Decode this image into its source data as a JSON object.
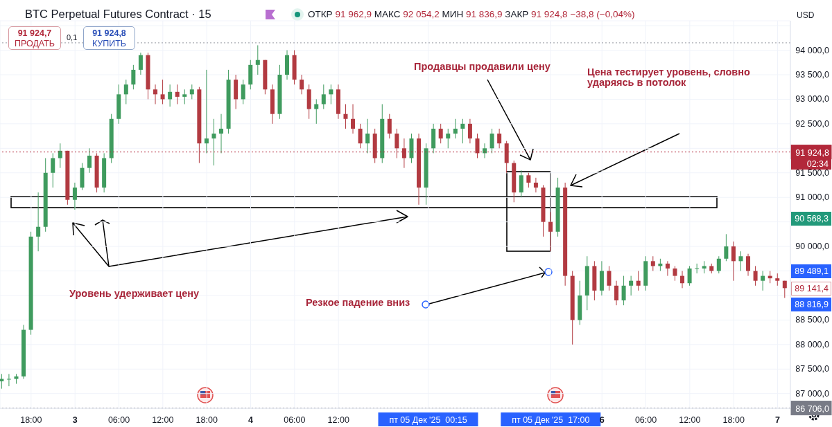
{
  "chart_data": {
    "type": "candlestick",
    "title": "BTC Perpetual Futures Contract · 15",
    "subtitle": "ОТКР 91 962,9 МАКС 92 054,2 МИН 91 836,9 ЗАКР 91 924,8 −38,8 (−0,04%)",
    "x": [
      "2025-12-02T14:00",
      "2025-12-02T15:00",
      "2025-12-02T16:00",
      "2025-12-02T17:00",
      "2025-12-02T18:00",
      "2025-12-02T19:00",
      "2025-12-02T20:00",
      "2025-12-02T21:00",
      "2025-12-02T22:00",
      "2025-12-02T23:00",
      "2025-12-03T00:00",
      "2025-12-03T01:00",
      "2025-12-03T02:00",
      "2025-12-03T03:00",
      "2025-12-03T04:00",
      "2025-12-03T05:00",
      "2025-12-03T06:00",
      "2025-12-03T07:00",
      "2025-12-03T08:00",
      "2025-12-03T09:00",
      "2025-12-03T10:00",
      "2025-12-03T11:00",
      "2025-12-03T12:00",
      "2025-12-03T13:00",
      "2025-12-03T14:00",
      "2025-12-03T15:00",
      "2025-12-03T16:00",
      "2025-12-03T17:00",
      "2025-12-03T18:00",
      "2025-12-03T19:00",
      "2025-12-03T20:00",
      "2025-12-03T21:00",
      "2025-12-03T22:00",
      "2025-12-03T23:00",
      "2025-12-04T00:00",
      "2025-12-04T01:00",
      "2025-12-04T02:00",
      "2025-12-04T03:00",
      "2025-12-04T04:00",
      "2025-12-04T05:00",
      "2025-12-04T06:00",
      "2025-12-04T07:00",
      "2025-12-04T08:00",
      "2025-12-04T09:00",
      "2025-12-04T10:00",
      "2025-12-04T11:00",
      "2025-12-04T12:00",
      "2025-12-04T13:00",
      "2025-12-04T14:00",
      "2025-12-04T15:00",
      "2025-12-04T16:00",
      "2025-12-04T17:00",
      "2025-12-04T18:00",
      "2025-12-04T19:00",
      "2025-12-04T20:00",
      "2025-12-04T21:00",
      "2025-12-04T22:00",
      "2025-12-04T23:00",
      "2025-12-05T00:00",
      "2025-12-05T01:00",
      "2025-12-05T02:00",
      "2025-12-05T03:00",
      "2025-12-05T04:00",
      "2025-12-05T05:00",
      "2025-12-05T06:00",
      "2025-12-05T07:00",
      "2025-12-05T08:00",
      "2025-12-05T09:00",
      "2025-12-05T10:00",
      "2025-12-05T11:00",
      "2025-12-05T12:00",
      "2025-12-05T13:00",
      "2025-12-05T14:00",
      "2025-12-05T15:00",
      "2025-12-05T16:00",
      "2025-12-05T17:00",
      "2025-12-05T18:00",
      "2025-12-05T19:00",
      "2025-12-05T20:00",
      "2025-12-05T21:00",
      "2025-12-05T22:00",
      "2025-12-05T23:00",
      "2025-12-06T00:00",
      "2025-12-06T01:00",
      "2025-12-06T02:00",
      "2025-12-06T03:00",
      "2025-12-06T04:00",
      "2025-12-06T05:00",
      "2025-12-06T06:00",
      "2025-12-06T07:00",
      "2025-12-06T08:00",
      "2025-12-06T09:00",
      "2025-12-06T10:00",
      "2025-12-06T11:00",
      "2025-12-06T12:00",
      "2025-12-06T13:00",
      "2025-12-06T14:00",
      "2025-12-06T15:00",
      "2025-12-06T16:00",
      "2025-12-06T17:00",
      "2025-12-06T18:00",
      "2025-12-06T19:00",
      "2025-12-06T20:00",
      "2025-12-06T21:00",
      "2025-12-06T22:00",
      "2025-12-06T23:00",
      "2025-12-07T00:00",
      "2025-12-07T01:00"
    ],
    "ohlc": [
      [
        87250,
        87400,
        87100,
        87300
      ],
      [
        87300,
        87400,
        87150,
        87300
      ],
      [
        87300,
        87400,
        87200,
        87350
      ],
      [
        87350,
        88400,
        87300,
        88300
      ],
      [
        88300,
        90300,
        88200,
        90200
      ],
      [
        90200,
        91100,
        89900,
        90400
      ],
      [
        90400,
        91800,
        90300,
        91500
      ],
      [
        91500,
        91900,
        91200,
        91800
      ],
      [
        91800,
        92100,
        91600,
        91950
      ],
      [
        91950,
        91950,
        90850,
        90950
      ],
      [
        90950,
        91300,
        90750,
        91200
      ],
      [
        91200,
        91700,
        91150,
        91600
      ],
      [
        91600,
        92000,
        91500,
        91850
      ],
      [
        91850,
        91900,
        91100,
        91200
      ],
      [
        91200,
        91900,
        91100,
        91800
      ],
      [
        91800,
        92700,
        91700,
        92600
      ],
      [
        92600,
        93300,
        92500,
        93100
      ],
      [
        93100,
        93400,
        92900,
        93300
      ],
      [
        93300,
        93700,
        93200,
        93600
      ],
      [
        93600,
        93950,
        93500,
        93900
      ],
      [
        93900,
        93950,
        93000,
        93200
      ],
      [
        93200,
        93300,
        92900,
        93100
      ],
      [
        93100,
        93400,
        92900,
        93000
      ],
      [
        93000,
        93300,
        92850,
        93150
      ],
      [
        93150,
        93300,
        92900,
        93050
      ],
      [
        93050,
        93200,
        92900,
        93100
      ],
      [
        93100,
        93300,
        93000,
        93200
      ],
      [
        93200,
        93250,
        91700,
        92100
      ],
      [
        92100,
        93600,
        91900,
        92200
      ],
      [
        92200,
        92600,
        91650,
        92300
      ],
      [
        92300,
        92700,
        91900,
        92400
      ],
      [
        92400,
        93600,
        92300,
        93400
      ],
      [
        93400,
        93500,
        92800,
        93000
      ],
      [
        93000,
        93400,
        92900,
        93300
      ],
      [
        93300,
        93800,
        93200,
        93700
      ],
      [
        93700,
        94100,
        93500,
        93800
      ],
      [
        93800,
        93800,
        93100,
        93200
      ],
      [
        93200,
        93300,
        92500,
        92700
      ],
      [
        92700,
        93700,
        92600,
        93500
      ],
      [
        93500,
        94000,
        93400,
        93900
      ],
      [
        93900,
        94000,
        93300,
        93400
      ],
      [
        93400,
        93500,
        93100,
        93200
      ],
      [
        93200,
        93300,
        92600,
        92800
      ],
      [
        92800,
        93000,
        92500,
        92900
      ],
      [
        92900,
        93300,
        92800,
        93100
      ],
      [
        93100,
        93300,
        92900,
        93200
      ],
      [
        93200,
        93300,
        92600,
        92700
      ],
      [
        92700,
        92900,
        92400,
        92600
      ],
      [
        92600,
        92900,
        92300,
        92400
      ],
      [
        92400,
        92500,
        92000,
        92100
      ],
      [
        92100,
        92600,
        91900,
        92300
      ],
      [
        92300,
        92400,
        91700,
        91800
      ],
      [
        91800,
        92900,
        91700,
        92600
      ],
      [
        92600,
        92700,
        92200,
        92300
      ],
      [
        92300,
        92400,
        91800,
        92000
      ],
      [
        92000,
        92200,
        91600,
        91800
      ],
      [
        91800,
        92300,
        91700,
        92200
      ],
      [
        92200,
        92300,
        90850,
        91200
      ],
      [
        91200,
        92100,
        90850,
        92000
      ],
      [
        92000,
        92500,
        91900,
        92400
      ],
      [
        92400,
        92500,
        92100,
        92200
      ],
      [
        92200,
        92400,
        92000,
        92300
      ],
      [
        92300,
        92600,
        92200,
        92400
      ],
      [
        92400,
        92600,
        92100,
        92500
      ],
      [
        92500,
        92600,
        92100,
        92200
      ],
      [
        92200,
        92300,
        91800,
        91900
      ],
      [
        91900,
        92100,
        91800,
        92000
      ],
      [
        92000,
        92400,
        91900,
        92300
      ],
      [
        92300,
        92400,
        92000,
        92100
      ],
      [
        92100,
        92150,
        91500,
        91700
      ],
      [
        91700,
        91750,
        90900,
        91100
      ],
      [
        91100,
        91550,
        91000,
        91450
      ],
      [
        91450,
        91500,
        91200,
        91300
      ],
      [
        91300,
        91400,
        91100,
        91200
      ],
      [
        91200,
        91250,
        90200,
        90500
      ],
      [
        90500,
        90700,
        89900,
        90300
      ],
      [
        90300,
        91400,
        90200,
        91200
      ],
      [
        91200,
        91300,
        89200,
        89400
      ],
      [
        89400,
        89500,
        88000,
        88500
      ],
      [
        88500,
        89300,
        88400,
        89000
      ],
      [
        89000,
        89800,
        88700,
        89600
      ],
      [
        89600,
        89700,
        88900,
        89100
      ],
      [
        89100,
        89700,
        89000,
        89500
      ],
      [
        89500,
        89600,
        89100,
        89200
      ],
      [
        89200,
        89300,
        88800,
        88900
      ],
      [
        88900,
        89400,
        88800,
        89200
      ],
      [
        89200,
        89400,
        89000,
        89300
      ],
      [
        89300,
        89500,
        89100,
        89200
      ],
      [
        89200,
        89800,
        89100,
        89700
      ],
      [
        89700,
        89800,
        89500,
        89600
      ],
      [
        89600,
        89750,
        89500,
        89650
      ],
      [
        89650,
        89700,
        89400,
        89550
      ],
      [
        89550,
        89600,
        89300,
        89400
      ],
      [
        89400,
        89500,
        89150,
        89250
      ],
      [
        89250,
        89600,
        89200,
        89550
      ],
      [
        89550,
        89650,
        89450,
        89550
      ],
      [
        89550,
        89700,
        89450,
        89600
      ],
      [
        89600,
        89650,
        89450,
        89500
      ],
      [
        89500,
        89800,
        89450,
        89750
      ],
      [
        89750,
        90250,
        89700,
        90000
      ],
      [
        90000,
        90100,
        89300,
        89700
      ],
      [
        89700,
        89900,
        89500,
        89800
      ],
      [
        89800,
        89850,
        89400,
        89500
      ],
      [
        89500,
        89600,
        89200,
        89300
      ],
      [
        89300,
        89500,
        89100,
        89400
      ],
      [
        89400,
        89500,
        89250,
        89350
      ],
      [
        89350,
        89450,
        89200,
        89300
      ],
      [
        89300,
        89300,
        88950,
        89150
      ]
    ],
    "xlim": [
      "2025-12-02T13:45",
      "2025-12-07T01:45"
    ],
    "xticks": [
      {
        "value": "2025-12-02T18:00",
        "label": "18:00"
      },
      {
        "value": "2025-12-03T00:00",
        "label": "3"
      },
      {
        "value": "2025-12-03T06:00",
        "label": "06:00"
      },
      {
        "value": "2025-12-03T12:00",
        "label": "12:00"
      },
      {
        "value": "2025-12-03T18:00",
        "label": "18:00"
      },
      {
        "value": "2025-12-04T00:00",
        "label": "4"
      },
      {
        "value": "2025-12-04T06:00",
        "label": "06:00"
      },
      {
        "value": "2025-12-04T12:00",
        "label": "12:00"
      },
      {
        "value": "2025-12-05T00:15",
        "label": "пт 05 Дек '25  00:15"
      },
      {
        "value": "2025-12-05T17:00",
        "label": "пт 05 Дек '25  17:00"
      },
      {
        "value": "2025-12-06T00:00",
        "label": "6"
      },
      {
        "value": "2025-12-06T06:00",
        "label": "06:00"
      },
      {
        "value": "2025-12-06T12:00",
        "label": "12:00"
      },
      {
        "value": "2025-12-06T18:00",
        "label": "18:00"
      },
      {
        "value": "2025-12-07T00:00",
        "label": "7"
      }
    ],
    "ylim": [
      86700,
      94600
    ],
    "yticks": [
      {
        "value": 87000,
        "label": "87 000,0"
      },
      {
        "value": 87500,
        "label": "87 500,0"
      },
      {
        "value": 88000,
        "label": "88 000,0"
      },
      {
        "value": 88500,
        "label": "88 500,0"
      },
      {
        "value": 89000,
        "label": null
      },
      {
        "value": 89500,
        "label": null
      },
      {
        "value": 90000,
        "label": "90 000,0"
      },
      {
        "value": 90500,
        "label": null
      },
      {
        "value": 91000,
        "label": "91 000,0"
      },
      {
        "value": 91500,
        "label": "91 500,0"
      },
      {
        "value": 92000,
        "label": null
      },
      {
        "value": 92500,
        "label": "92 500,0"
      },
      {
        "value": 93000,
        "label": "93 000,0"
      },
      {
        "value": 93500,
        "label": "93 500,0"
      },
      {
        "value": 94000,
        "label": "94 000,0"
      },
      {
        "value": 94500,
        "label": null
      }
    ],
    "grid": true,
    "ref_lines": [
      {
        "axis": "y",
        "value": 94150,
        "label": null,
        "color": "#9598a1",
        "line_style": "dotted"
      },
      {
        "axis": "y",
        "value": 91924.8,
        "label": "91 924,8",
        "color": "#b2283a",
        "line_style": "dotted"
      },
      {
        "axis": "y",
        "value": 86706,
        "label": "86 706,0",
        "color": "#787b86",
        "line_style": "dotted"
      }
    ],
    "annotations": [
      "91 924,7",
      "ПРОДАТЬ",
      "0,1",
      "91 924,8",
      "КУПИТЬ",
      "USD",
      "02:34",
      "Продавцы продавили цену",
      "Цена тестирует уровень, словно ударяясь в потолок",
      "Уровень удерживает цену",
      "Резкое падение вниз",
      "90 568,3",
      "89 489,1",
      "89 141,4",
      "88 816,9"
    ]
  }
}
